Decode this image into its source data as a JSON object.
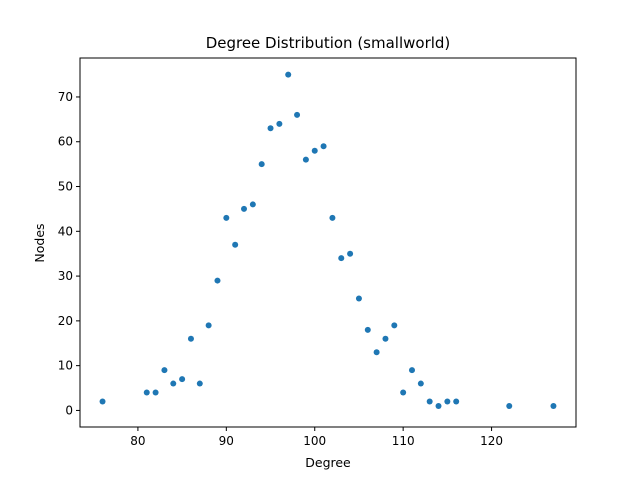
{
  "chart_data": {
    "type": "scatter",
    "title": "Degree Distribution (smallworld)",
    "xlabel": "Degree",
    "ylabel": "Nodes",
    "xlim": [
      73.45,
      129.55
    ],
    "ylim": [
      -3.7,
      78.7
    ],
    "xticks": [
      80,
      90,
      100,
      110,
      120
    ],
    "yticks": [
      0,
      10,
      20,
      30,
      40,
      50,
      60,
      70
    ],
    "grid": false,
    "legend": "none",
    "series": [
      {
        "color": "#1f77b4",
        "points": [
          [
            76,
            2
          ],
          [
            81,
            4
          ],
          [
            82,
            4
          ],
          [
            83,
            9
          ],
          [
            84,
            6
          ],
          [
            85,
            7
          ],
          [
            86,
            16
          ],
          [
            87,
            6
          ],
          [
            88,
            19
          ],
          [
            89,
            29
          ],
          [
            90,
            43
          ],
          [
            91,
            37
          ],
          [
            92,
            45
          ],
          [
            93,
            46
          ],
          [
            94,
            55
          ],
          [
            95,
            63
          ],
          [
            96,
            64
          ],
          [
            97,
            75
          ],
          [
            98,
            66
          ],
          [
            99,
            56
          ],
          [
            100,
            58
          ],
          [
            101,
            59
          ],
          [
            102,
            43
          ],
          [
            103,
            34
          ],
          [
            104,
            35
          ],
          [
            105,
            25
          ],
          [
            106,
            18
          ],
          [
            107,
            13
          ],
          [
            108,
            16
          ],
          [
            109,
            19
          ],
          [
            110,
            4
          ],
          [
            111,
            9
          ],
          [
            112,
            6
          ],
          [
            113,
            2
          ],
          [
            114,
            1
          ],
          [
            115,
            2
          ],
          [
            116,
            2
          ],
          [
            122,
            1
          ],
          [
            127,
            1
          ]
        ]
      }
    ]
  }
}
